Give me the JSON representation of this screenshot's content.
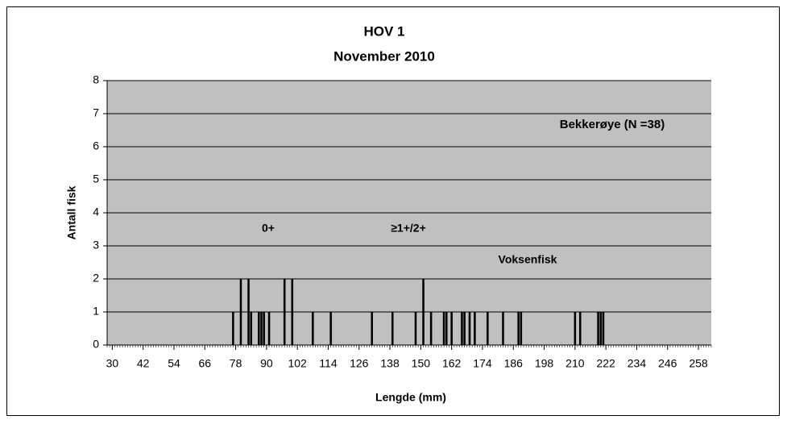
{
  "chart_data": {
    "type": "bar",
    "title": "HOV 1",
    "subtitle": "November 2010",
    "x_label": "Lengde (mm)",
    "y_label": "Antall fisk",
    "annotations": [
      "Bekkerøye (N =38)",
      "0+",
      "≥1+/2+",
      "Voksenfisk"
    ],
    "x": [
      77,
      80,
      83,
      84,
      87,
      88,
      89,
      91,
      97,
      100,
      108,
      115,
      131,
      139,
      148,
      151,
      154,
      159,
      160,
      162,
      166,
      167,
      169,
      171,
      176,
      182,
      188,
      189,
      210,
      212,
      219,
      220,
      221
    ],
    "values": [
      1,
      2,
      2,
      1,
      1,
      1,
      1,
      1,
      2,
      2,
      1,
      1,
      1,
      1,
      1,
      2,
      1,
      1,
      1,
      1,
      1,
      1,
      1,
      1,
      1,
      1,
      1,
      1,
      1,
      1,
      1,
      1,
      1
    ],
    "color": "#000000",
    "plot_color": "#c0c0c0",
    "xlim": [
      28,
      263
    ],
    "xticks": [
      30,
      42,
      54,
      66,
      78,
      90,
      102,
      114,
      126,
      138,
      150,
      162,
      174,
      186,
      198,
      210,
      222,
      234,
      246,
      258
    ],
    "ylim": [
      0,
      8
    ],
    "yticks": [
      0,
      1,
      2,
      3,
      4,
      5,
      6,
      7,
      8
    ],
    "grid": true
  }
}
